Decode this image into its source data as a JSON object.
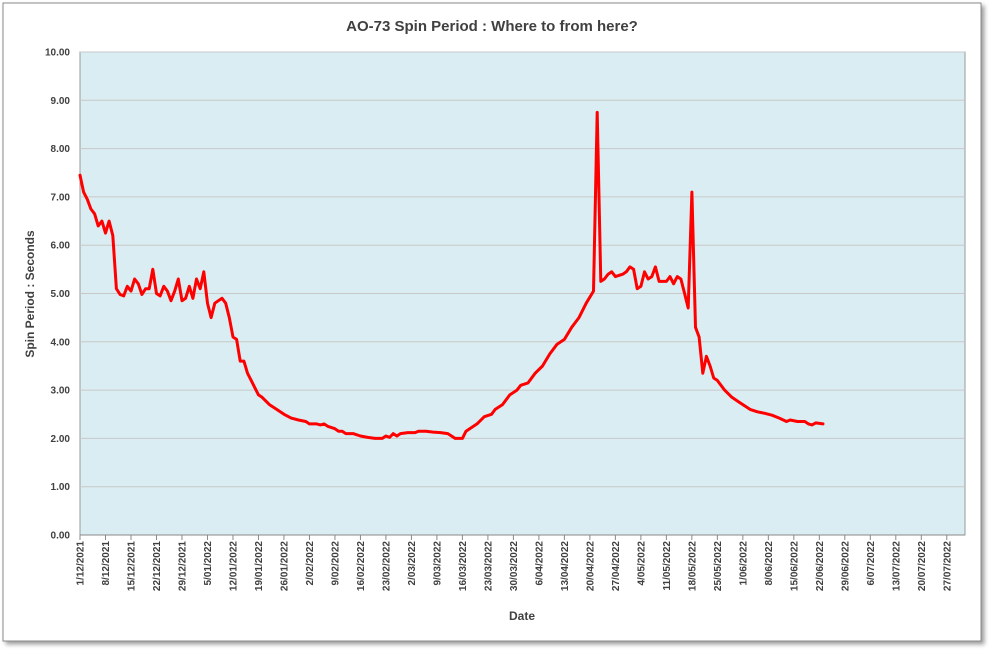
{
  "chart_data": {
    "type": "line",
    "title": "AO-73 Spin Period : Where to from here?",
    "xlabel": "Date",
    "ylabel": "Spin Period : Seconds",
    "xlim": [
      "2021-12-01",
      "2022-08-01"
    ],
    "ylim": [
      0,
      10
    ],
    "yticks": [
      {
        "value": 0,
        "label": "0.00"
      },
      {
        "value": 1,
        "label": "1.00"
      },
      {
        "value": 2,
        "label": "2.00"
      },
      {
        "value": 3,
        "label": "3.00"
      },
      {
        "value": 4,
        "label": "4.00"
      },
      {
        "value": 5,
        "label": "5.00"
      },
      {
        "value": 6,
        "label": "6.00"
      },
      {
        "value": 7,
        "label": "7.00"
      },
      {
        "value": 8,
        "label": "8.00"
      },
      {
        "value": 9,
        "label": "9.00"
      },
      {
        "value": 10,
        "label": "10.00"
      }
    ],
    "xticks": [
      {
        "value": "2021-12-01",
        "label": "1/12/2021"
      },
      {
        "value": "2021-12-08",
        "label": "8/12/2021"
      },
      {
        "value": "2021-12-15",
        "label": "15/12/2021"
      },
      {
        "value": "2021-12-22",
        "label": "22/12/2021"
      },
      {
        "value": "2021-12-29",
        "label": "29/12/2021"
      },
      {
        "value": "2022-01-05",
        "label": "5/01/2022"
      },
      {
        "value": "2022-01-12",
        "label": "12/01/2022"
      },
      {
        "value": "2022-01-19",
        "label": "19/01/2022"
      },
      {
        "value": "2022-01-26",
        "label": "26/01/2022"
      },
      {
        "value": "2022-02-02",
        "label": "2/02/2022"
      },
      {
        "value": "2022-02-09",
        "label": "9/02/2022"
      },
      {
        "value": "2022-02-16",
        "label": "16/02/2022"
      },
      {
        "value": "2022-02-23",
        "label": "23/02/2022"
      },
      {
        "value": "2022-03-02",
        "label": "2/03/2022"
      },
      {
        "value": "2022-03-09",
        "label": "9/03/2022"
      },
      {
        "value": "2022-03-16",
        "label": "16/03/2022"
      },
      {
        "value": "2022-03-23",
        "label": "23/03/2022"
      },
      {
        "value": "2022-03-30",
        "label": "30/03/2022"
      },
      {
        "value": "2022-04-06",
        "label": "6/04/2022"
      },
      {
        "value": "2022-04-13",
        "label": "13/04/2022"
      },
      {
        "value": "2022-04-20",
        "label": "20/04/2022"
      },
      {
        "value": "2022-04-27",
        "label": "27/04/2022"
      },
      {
        "value": "2022-05-04",
        "label": "4/05/2022"
      },
      {
        "value": "2022-05-11",
        "label": "11/05/2022"
      },
      {
        "value": "2022-05-18",
        "label": "18/05/2022"
      },
      {
        "value": "2022-05-25",
        "label": "25/05/2022"
      },
      {
        "value": "2022-06-01",
        "label": "1/06/2022"
      },
      {
        "value": "2022-06-08",
        "label": "8/06/2022"
      },
      {
        "value": "2022-06-15",
        "label": "15/06/2022"
      },
      {
        "value": "2022-06-22",
        "label": "22/06/2022"
      },
      {
        "value": "2022-06-29",
        "label": "29/06/2022"
      },
      {
        "value": "2022-07-06",
        "label": "6/07/2022"
      },
      {
        "value": "2022-07-13",
        "label": "13/07/2022"
      },
      {
        "value": "2022-07-20",
        "label": "20/07/2022"
      },
      {
        "value": "2022-07-27",
        "label": "27/07/2022"
      }
    ],
    "grid": true,
    "background": "#daedf3",
    "color": "#ff0000",
    "x": [
      "2021-12-01",
      "2021-12-02",
      "2021-12-03",
      "2021-12-04",
      "2021-12-05",
      "2021-12-06",
      "2021-12-07",
      "2021-12-08",
      "2021-12-09",
      "2021-12-10",
      "2021-12-11",
      "2021-12-12",
      "2021-12-13",
      "2021-12-14",
      "2021-12-15",
      "2021-12-16",
      "2021-12-17",
      "2021-12-18",
      "2021-12-19",
      "2021-12-20",
      "2021-12-21",
      "2021-12-22",
      "2021-12-23",
      "2021-12-24",
      "2021-12-25",
      "2021-12-26",
      "2021-12-27",
      "2021-12-28",
      "2021-12-29",
      "2021-12-30",
      "2021-12-31",
      "2022-01-01",
      "2022-01-02",
      "2022-01-03",
      "2022-01-04",
      "2022-01-05",
      "2022-01-06",
      "2022-01-07",
      "2022-01-08",
      "2022-01-09",
      "2022-01-10",
      "2022-01-11",
      "2022-01-12",
      "2022-01-13",
      "2022-01-14",
      "2022-01-15",
      "2022-01-16",
      "2022-01-17",
      "2022-01-18",
      "2022-01-19",
      "2022-01-20",
      "2022-01-22",
      "2022-01-24",
      "2022-01-26",
      "2022-01-28",
      "2022-01-30",
      "2022-02-01",
      "2022-02-02",
      "2022-02-04",
      "2022-02-05",
      "2022-02-06",
      "2022-02-07",
      "2022-02-09",
      "2022-02-10",
      "2022-02-11",
      "2022-02-12",
      "2022-02-14",
      "2022-02-16",
      "2022-02-18",
      "2022-02-20",
      "2022-02-22",
      "2022-02-23",
      "2022-02-24",
      "2022-02-25",
      "2022-02-26",
      "2022-02-27",
      "2022-03-01",
      "2022-03-03",
      "2022-03-04",
      "2022-03-06",
      "2022-03-08",
      "2022-03-10",
      "2022-03-12",
      "2022-03-13",
      "2022-03-14",
      "2022-03-16",
      "2022-03-17",
      "2022-03-18",
      "2022-03-20",
      "2022-03-22",
      "2022-03-24",
      "2022-03-25",
      "2022-03-27",
      "2022-03-28",
      "2022-03-29",
      "2022-03-31",
      "2022-04-01",
      "2022-04-03",
      "2022-04-05",
      "2022-04-07",
      "2022-04-09",
      "2022-04-11",
      "2022-04-13",
      "2022-04-15",
      "2022-04-16",
      "2022-04-17",
      "2022-04-19",
      "2022-04-21",
      "2022-04-22",
      "2022-04-23",
      "2022-04-24",
      "2022-04-25",
      "2022-04-26",
      "2022-04-27",
      "2022-04-29",
      "2022-04-30",
      "2022-05-01",
      "2022-05-02",
      "2022-05-03",
      "2022-05-04",
      "2022-05-05",
      "2022-05-06",
      "2022-05-07",
      "2022-05-08",
      "2022-05-09",
      "2022-05-11",
      "2022-05-12",
      "2022-05-13",
      "2022-05-14",
      "2022-05-15",
      "2022-05-16",
      "2022-05-17",
      "2022-05-18",
      "2022-05-19",
      "2022-05-20",
      "2022-05-21",
      "2022-05-22",
      "2022-05-23",
      "2022-05-24",
      "2022-05-25",
      "2022-05-26",
      "2022-05-27",
      "2022-05-29",
      "2022-05-31",
      "2022-06-02",
      "2022-06-03",
      "2022-06-05",
      "2022-06-07",
      "2022-06-09",
      "2022-06-11",
      "2022-06-13",
      "2022-06-14",
      "2022-06-16",
      "2022-06-18",
      "2022-06-19",
      "2022-06-20",
      "2022-06-21",
      "2022-06-23"
    ],
    "values": [
      7.45,
      7.1,
      6.95,
      6.75,
      6.65,
      6.4,
      6.5,
      6.25,
      6.5,
      6.2,
      5.1,
      4.98,
      4.95,
      5.15,
      5.05,
      5.3,
      5.2,
      4.98,
      5.1,
      5.1,
      5.5,
      5.0,
      4.95,
      5.15,
      5.05,
      4.85,
      5.05,
      5.3,
      4.85,
      4.9,
      5.15,
      4.9,
      5.3,
      5.1,
      5.45,
      4.8,
      4.5,
      4.8,
      4.85,
      4.9,
      4.8,
      4.5,
      4.1,
      4.05,
      3.6,
      3.6,
      3.35,
      3.2,
      3.05,
      2.9,
      2.85,
      2.7,
      2.6,
      2.5,
      2.42,
      2.38,
      2.35,
      2.3,
      2.3,
      2.28,
      2.3,
      2.25,
      2.2,
      2.15,
      2.15,
      2.1,
      2.1,
      2.05,
      2.02,
      2.0,
      2.0,
      2.05,
      2.02,
      2.1,
      2.05,
      2.1,
      2.12,
      2.12,
      2.15,
      2.15,
      2.13,
      2.12,
      2.1,
      2.05,
      2.0,
      2.0,
      2.15,
      2.2,
      2.3,
      2.45,
      2.5,
      2.6,
      2.7,
      2.8,
      2.9,
      3.0,
      3.1,
      3.15,
      3.35,
      3.5,
      3.75,
      3.95,
      4.05,
      4.3,
      4.4,
      4.5,
      4.8,
      5.05,
      8.75,
      5.25,
      5.3,
      5.4,
      5.45,
      5.35,
      5.4,
      5.45,
      5.55,
      5.5,
      5.1,
      5.15,
      5.45,
      5.3,
      5.35,
      5.55,
      5.25,
      5.25,
      5.35,
      5.2,
      5.35,
      5.3,
      5.0,
      4.7,
      7.1,
      4.3,
      4.1,
      3.35,
      3.7,
      3.5,
      3.25,
      3.2,
      3.1,
      3.0,
      2.85,
      2.75,
      2.65,
      2.6,
      2.55,
      2.52,
      2.48,
      2.42,
      2.35,
      2.38,
      2.35,
      2.35,
      2.3,
      2.28,
      2.32,
      2.3
    ]
  }
}
